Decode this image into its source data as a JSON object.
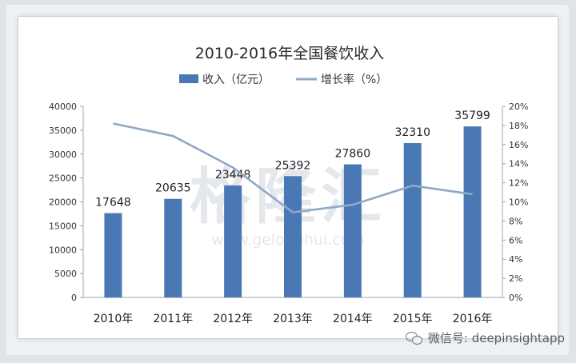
{
  "chart_data": {
    "type": "bar",
    "title": "2010-2016年全国餐饮收入",
    "categories": [
      "2010年",
      "2011年",
      "2012年",
      "2013年",
      "2014年",
      "2015年",
      "2016年"
    ],
    "series": [
      {
        "name": "收入（亿元）",
        "type": "bar",
        "axis": "left",
        "values": [
          17648,
          20635,
          23448,
          25392,
          27860,
          32310,
          35799
        ],
        "labels": [
          "17648",
          "20635",
          "23448",
          "25392",
          "27860",
          "32310",
          "35799"
        ],
        "color": "#4a78b5"
      },
      {
        "name": "增长率（%）",
        "type": "line",
        "axis": "right",
        "values": [
          18.2,
          16.9,
          13.6,
          8.9,
          9.7,
          11.7,
          10.8
        ],
        "color": "#8fa8c6"
      }
    ],
    "y_left": {
      "min": 0,
      "max": 40000,
      "ticks": [
        "0",
        "5000",
        "10000",
        "15000",
        "20000",
        "25000",
        "30000",
        "35000",
        "40000"
      ]
    },
    "y_right": {
      "min": 0,
      "max": 20,
      "ticks": [
        "0%",
        "2%",
        "4%",
        "6%",
        "8%",
        "10%",
        "12%",
        "14%",
        "16%",
        "18%",
        "20%"
      ]
    },
    "grid": false,
    "legend_position": "top-center"
  },
  "watermark": {
    "main": "格隆汇",
    "url": "www.gelonghui.com"
  },
  "footer": {
    "brand": "微信号: deepinsightapp"
  }
}
